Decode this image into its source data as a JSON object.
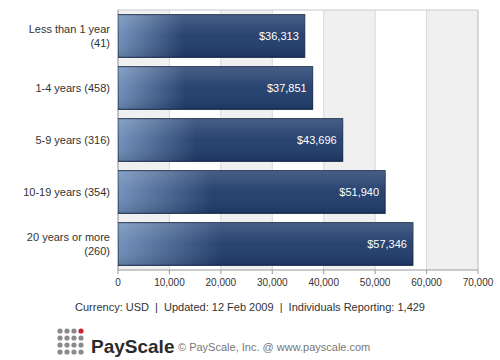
{
  "chart_data": {
    "type": "bar",
    "orientation": "horizontal",
    "categories": [
      "Less than 1 year\n(41)",
      "1-4 years (458)",
      "5-9 years (316)",
      "10-19 years (354)",
      "20 years or more\n(260)"
    ],
    "values": [
      36313,
      37851,
      43696,
      51940,
      57346
    ],
    "value_labels": [
      "$36,313",
      "$37,851",
      "$43,696",
      "$51,940",
      "$57,346"
    ],
    "color": "#1f3c6b",
    "xlim": [
      0,
      70000
    ],
    "xticks": [
      0,
      {
        "value": 10000,
        "label": "10,000"
      },
      {
        "value": 20000,
        "label": "20,000"
      },
      {
        "value": 30000,
        "label": "30,000"
      },
      {
        "value": 40000,
        "label": "40,000"
      },
      {
        "value": 50000,
        "label": "50,000"
      },
      {
        "value": 60000,
        "label": "60,000"
      },
      {
        "value": 70000,
        "label": "70,000"
      }
    ],
    "grid": true,
    "data_labels": true,
    "annotations": [
      "Currency: USD  |  Updated: 12 Feb 2009  |  Individuals Reporting: 1,429",
      "PayScale",
      "© PayScale, Inc. @ www.payscale.com"
    ]
  }
}
